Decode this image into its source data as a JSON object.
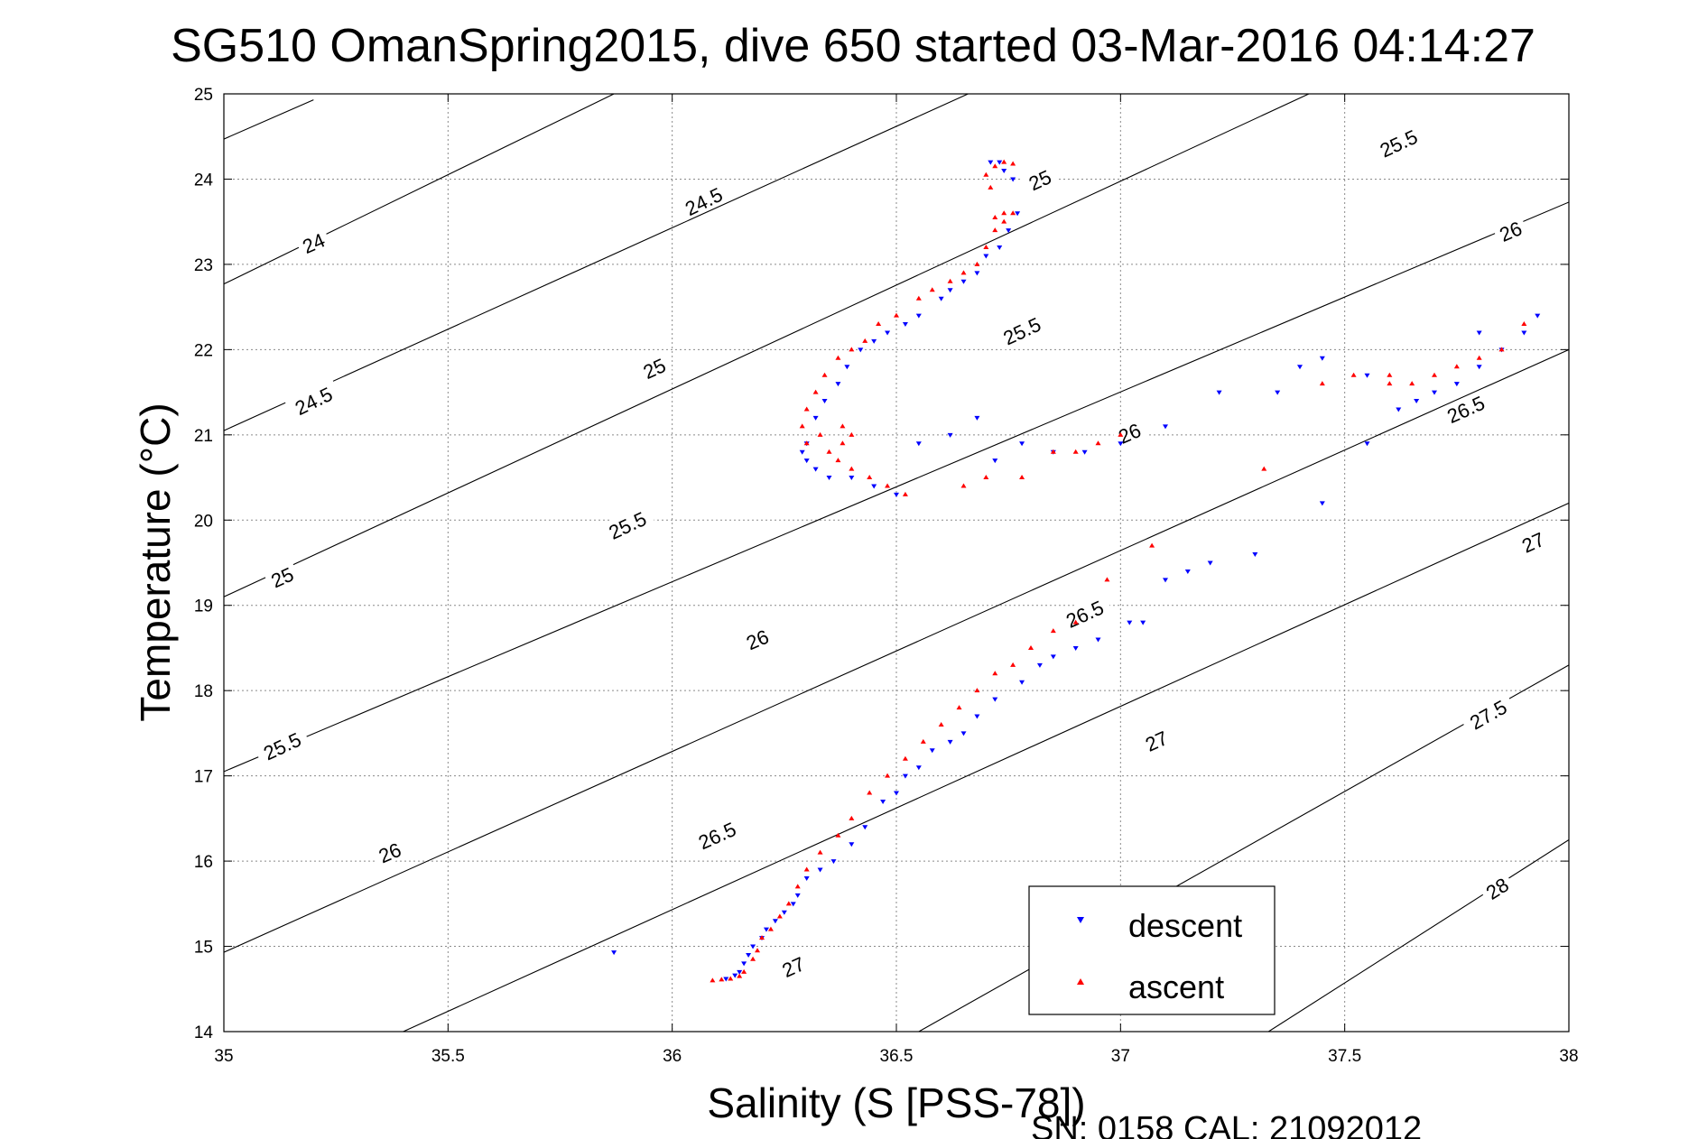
{
  "chart_data": {
    "type": "scatter",
    "title": "SG510 OmanSpring2015, dive 650 started 03-Mar-2016 04:14:27",
    "xlabel": "Salinity (S [PSS-78])",
    "ylabel": "Temperature (°C)",
    "footer": "SN: 0158  CAL: 21092012",
    "xlim": [
      35,
      38
    ],
    "ylim": [
      14,
      25
    ],
    "xticks": [
      35,
      35.5,
      36,
      36.5,
      37,
      37.5,
      38
    ],
    "xtick_labels": [
      "35",
      "35.5",
      "36",
      "36.5",
      "37",
      "37.5",
      "38"
    ],
    "yticks": [
      14,
      15,
      16,
      17,
      18,
      19,
      20,
      21,
      22,
      23,
      24,
      25
    ],
    "ytick_labels": [
      "14",
      "15",
      "16",
      "17",
      "18",
      "19",
      "20",
      "21",
      "22",
      "23",
      "24",
      "25"
    ],
    "grid": true,
    "legend_position": "bottom-right",
    "contours": [
      {
        "level": "24",
        "points": [
          [
            35.0,
            24.47
          ],
          [
            35.2,
            24.93
          ]
        ],
        "labels": [
          {
            "text": "24",
            "x": 35.2,
            "y": 23.25
          }
        ]
      },
      {
        "level": "24.5",
        "points": [
          [
            35.0,
            22.77
          ],
          [
            35.87,
            25.0
          ]
        ],
        "labels": [
          {
            "text": "24.5",
            "x": 35.2,
            "y": 21.4
          },
          {
            "text": "24.5",
            "x": 36.07,
            "y": 23.74
          }
        ]
      },
      {
        "level": "25",
        "points": [
          [
            35.0,
            21.05
          ],
          [
            36.66,
            25.0
          ]
        ],
        "labels": [
          {
            "text": "25",
            "x": 35.13,
            "y": 19.33
          },
          {
            "text": "25",
            "x": 35.96,
            "y": 21.78
          },
          {
            "text": "25",
            "x": 36.82,
            "y": 23.99
          }
        ]
      },
      {
        "level": "25.5",
        "points": [
          [
            35.0,
            19.1
          ],
          [
            37.42,
            25.0
          ]
        ],
        "labels": [
          {
            "text": "25.5",
            "x": 35.13,
            "y": 17.35
          },
          {
            "text": "25.5",
            "x": 35.9,
            "y": 19.94
          },
          {
            "text": "25.5",
            "x": 36.78,
            "y": 22.22
          },
          {
            "text": "25.5",
            "x": 37.62,
            "y": 24.42
          }
        ]
      },
      {
        "level": "26",
        "points": [
          [
            35.0,
            17.05
          ],
          [
            38.0,
            23.73
          ]
        ],
        "labels": [
          {
            "text": "26",
            "x": 35.37,
            "y": 16.1
          },
          {
            "text": "26",
            "x": 36.19,
            "y": 18.6
          },
          {
            "text": "26",
            "x": 37.02,
            "y": 21.02
          },
          {
            "text": "26",
            "x": 37.87,
            "y": 23.39
          }
        ]
      },
      {
        "level": "26.5",
        "points": [
          [
            35.0,
            14.93
          ],
          [
            38.0,
            22.0
          ]
        ],
        "labels": [
          {
            "text": "26.5",
            "x": 36.1,
            "y": 16.3
          },
          {
            "text": "26.5",
            "x": 36.92,
            "y": 18.9
          },
          {
            "text": "26.5",
            "x": 37.77,
            "y": 21.3
          }
        ]
      },
      {
        "level": "27",
        "points": [
          [
            35.4,
            14.0
          ],
          [
            38.0,
            20.2
          ]
        ],
        "labels": [
          {
            "text": "27",
            "x": 36.27,
            "y": 14.76
          },
          {
            "text": "27",
            "x": 37.08,
            "y": 17.41
          },
          {
            "text": "27",
            "x": 37.92,
            "y": 19.74
          }
        ]
      },
      {
        "level": "27.5",
        "points": [
          [
            36.55,
            14.0
          ],
          [
            38.0,
            18.3
          ]
        ],
        "labels": [
          {
            "text": "27.5",
            "x": 37.82,
            "y": 17.72
          }
        ]
      },
      {
        "level": "28",
        "points": [
          [
            37.33,
            14.0
          ],
          [
            38.0,
            16.25
          ]
        ],
        "labels": [
          {
            "text": "28",
            "x": 37.84,
            "y": 15.68
          }
        ]
      }
    ],
    "series": [
      {
        "name": "descent",
        "color": "#0000ff",
        "marker": "triangle-down",
        "points": [
          [
            35.87,
            14.93
          ],
          [
            36.12,
            14.62
          ],
          [
            36.14,
            14.66
          ],
          [
            36.15,
            14.7
          ],
          [
            36.16,
            14.8
          ],
          [
            36.17,
            14.9
          ],
          [
            36.18,
            15.0
          ],
          [
            36.2,
            15.1
          ],
          [
            36.21,
            15.2
          ],
          [
            36.23,
            15.3
          ],
          [
            36.25,
            15.4
          ],
          [
            36.27,
            15.5
          ],
          [
            36.28,
            15.6
          ],
          [
            36.3,
            15.8
          ],
          [
            36.33,
            15.9
          ],
          [
            36.36,
            16.0
          ],
          [
            36.4,
            16.2
          ],
          [
            36.43,
            16.4
          ],
          [
            36.47,
            16.7
          ],
          [
            36.5,
            16.8
          ],
          [
            36.52,
            17.0
          ],
          [
            36.55,
            17.1
          ],
          [
            36.58,
            17.3
          ],
          [
            36.62,
            17.4
          ],
          [
            36.65,
            17.5
          ],
          [
            36.68,
            17.7
          ],
          [
            36.72,
            17.9
          ],
          [
            36.78,
            18.1
          ],
          [
            36.82,
            18.3
          ],
          [
            36.85,
            18.4
          ],
          [
            36.9,
            18.5
          ],
          [
            36.95,
            18.6
          ],
          [
            37.02,
            18.8
          ],
          [
            37.05,
            18.8
          ],
          [
            37.1,
            19.3
          ],
          [
            37.15,
            19.4
          ],
          [
            37.2,
            19.5
          ],
          [
            37.3,
            19.6
          ],
          [
            37.45,
            20.2
          ],
          [
            37.55,
            20.9
          ],
          [
            37.62,
            21.3
          ],
          [
            37.66,
            21.4
          ],
          [
            37.7,
            21.5
          ],
          [
            37.75,
            21.6
          ],
          [
            37.8,
            21.8
          ],
          [
            37.85,
            22.0
          ],
          [
            37.9,
            22.2
          ],
          [
            37.93,
            22.4
          ],
          [
            37.8,
            22.2
          ],
          [
            37.55,
            21.7
          ],
          [
            37.45,
            21.9
          ],
          [
            37.4,
            21.8
          ],
          [
            37.35,
            21.5
          ],
          [
            37.22,
            21.5
          ],
          [
            37.1,
            21.1
          ],
          [
            37.0,
            20.9
          ],
          [
            36.92,
            20.8
          ],
          [
            36.85,
            20.8
          ],
          [
            36.78,
            20.9
          ],
          [
            36.72,
            20.7
          ],
          [
            36.68,
            21.2
          ],
          [
            36.62,
            21.0
          ],
          [
            36.55,
            20.9
          ],
          [
            36.5,
            20.3
          ],
          [
            36.45,
            20.4
          ],
          [
            36.4,
            20.5
          ],
          [
            36.35,
            20.5
          ],
          [
            36.32,
            20.6
          ],
          [
            36.3,
            20.7
          ],
          [
            36.29,
            20.8
          ],
          [
            36.3,
            20.9
          ],
          [
            36.32,
            21.2
          ],
          [
            36.34,
            21.4
          ],
          [
            36.37,
            21.6
          ],
          [
            36.39,
            21.8
          ],
          [
            36.42,
            22.0
          ],
          [
            36.45,
            22.1
          ],
          [
            36.48,
            22.2
          ],
          [
            36.52,
            22.3
          ],
          [
            36.55,
            22.4
          ],
          [
            36.6,
            22.6
          ],
          [
            36.62,
            22.7
          ],
          [
            36.65,
            22.8
          ],
          [
            36.68,
            22.9
          ],
          [
            36.7,
            23.1
          ],
          [
            36.73,
            23.2
          ],
          [
            36.75,
            23.4
          ],
          [
            36.77,
            23.6
          ],
          [
            36.76,
            24.0
          ],
          [
            36.74,
            24.1
          ],
          [
            36.73,
            24.2
          ],
          [
            36.71,
            24.2
          ]
        ]
      },
      {
        "name": "ascent",
        "color": "#ff0000",
        "marker": "triangle-up",
        "points": [
          [
            36.09,
            14.6
          ],
          [
            36.11,
            14.61
          ],
          [
            36.13,
            14.62
          ],
          [
            36.15,
            14.65
          ],
          [
            36.16,
            14.7
          ],
          [
            36.18,
            14.85
          ],
          [
            36.19,
            14.95
          ],
          [
            36.2,
            15.1
          ],
          [
            36.22,
            15.2
          ],
          [
            36.24,
            15.35
          ],
          [
            36.26,
            15.5
          ],
          [
            36.28,
            15.7
          ],
          [
            36.3,
            15.9
          ],
          [
            36.33,
            16.1
          ],
          [
            36.37,
            16.3
          ],
          [
            36.4,
            16.5
          ],
          [
            36.44,
            16.8
          ],
          [
            36.48,
            17.0
          ],
          [
            36.52,
            17.2
          ],
          [
            36.56,
            17.4
          ],
          [
            36.6,
            17.6
          ],
          [
            36.64,
            17.8
          ],
          [
            36.68,
            18.0
          ],
          [
            36.72,
            18.2
          ],
          [
            36.76,
            18.3
          ],
          [
            36.8,
            18.5
          ],
          [
            36.85,
            18.7
          ],
          [
            36.9,
            18.8
          ],
          [
            36.97,
            19.3
          ],
          [
            37.07,
            19.7
          ],
          [
            37.32,
            20.6
          ],
          [
            37.45,
            21.6
          ],
          [
            37.6,
            21.7
          ],
          [
            37.65,
            21.6
          ],
          [
            37.7,
            21.7
          ],
          [
            37.75,
            21.8
          ],
          [
            37.8,
            21.9
          ],
          [
            37.85,
            22.0
          ],
          [
            37.9,
            22.3
          ],
          [
            37.6,
            21.6
          ],
          [
            37.52,
            21.7
          ],
          [
            37.0,
            21.0
          ],
          [
            36.95,
            20.9
          ],
          [
            36.9,
            20.8
          ],
          [
            36.85,
            20.8
          ],
          [
            36.78,
            20.5
          ],
          [
            36.7,
            20.5
          ],
          [
            36.65,
            20.4
          ],
          [
            36.52,
            20.3
          ],
          [
            36.48,
            20.4
          ],
          [
            36.44,
            20.5
          ],
          [
            36.4,
            20.6
          ],
          [
            36.37,
            20.7
          ],
          [
            36.35,
            20.8
          ],
          [
            36.38,
            20.9
          ],
          [
            36.4,
            21.0
          ],
          [
            36.38,
            21.1
          ],
          [
            36.33,
            21.0
          ],
          [
            36.3,
            20.9
          ],
          [
            36.29,
            21.1
          ],
          [
            36.3,
            21.3
          ],
          [
            36.32,
            21.5
          ],
          [
            36.34,
            21.7
          ],
          [
            36.37,
            21.9
          ],
          [
            36.4,
            22.0
          ],
          [
            36.43,
            22.1
          ],
          [
            36.46,
            22.3
          ],
          [
            36.5,
            22.4
          ],
          [
            36.55,
            22.6
          ],
          [
            36.58,
            22.7
          ],
          [
            36.62,
            22.8
          ],
          [
            36.65,
            22.9
          ],
          [
            36.68,
            23.0
          ],
          [
            36.7,
            23.2
          ],
          [
            36.72,
            23.4
          ],
          [
            36.74,
            23.5
          ],
          [
            36.76,
            23.6
          ],
          [
            36.74,
            23.6
          ],
          [
            36.72,
            23.55
          ],
          [
            36.71,
            23.9
          ],
          [
            36.7,
            24.05
          ],
          [
            36.72,
            24.15
          ],
          [
            36.74,
            24.2
          ],
          [
            36.76,
            24.18
          ]
        ]
      }
    ]
  }
}
